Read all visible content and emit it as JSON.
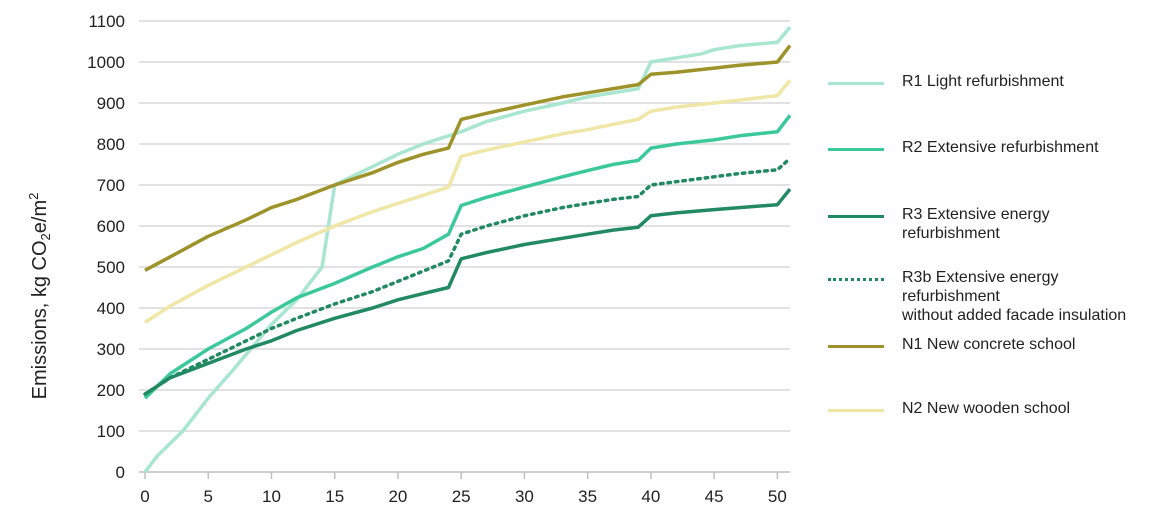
{
  "chart_data": {
    "type": "line",
    "title": "",
    "xlabel": "",
    "ylabel": "Emissions, kg CO2e/m2",
    "ylabel_parts": {
      "prefix": "Emissions, kg CO",
      "sub": "2",
      "mid": "e/m",
      "sup": "2"
    },
    "xlim": [
      0,
      51
    ],
    "ylim": [
      0,
      1100
    ],
    "xticks": [
      0,
      5,
      10,
      15,
      20,
      25,
      30,
      35,
      40,
      45,
      50
    ],
    "yticks": [
      0,
      100,
      200,
      300,
      400,
      500,
      600,
      700,
      800,
      900,
      1000,
      1100
    ],
    "grid": "horizontal",
    "legend_position": "right",
    "series": [
      {
        "name": "R1 Light refurbishment",
        "legend_lines": [
          "R1 Light refurbishment"
        ],
        "color": "#a8e6cf",
        "dash": "solid",
        "points": [
          [
            0,
            0
          ],
          [
            1,
            40
          ],
          [
            3,
            100
          ],
          [
            5,
            180
          ],
          [
            7,
            250
          ],
          [
            10,
            360
          ],
          [
            12,
            420
          ],
          [
            14,
            500
          ],
          [
            15,
            700
          ],
          [
            17,
            730
          ],
          [
            20,
            775
          ],
          [
            22,
            800
          ],
          [
            24,
            820
          ],
          [
            25,
            830
          ],
          [
            27,
            855
          ],
          [
            30,
            880
          ],
          [
            33,
            900
          ],
          [
            35,
            915
          ],
          [
            37,
            925
          ],
          [
            39,
            935
          ],
          [
            40,
            1000
          ],
          [
            42,
            1010
          ],
          [
            44,
            1020
          ],
          [
            45,
            1030
          ],
          [
            47,
            1040
          ],
          [
            50,
            1048
          ],
          [
            51,
            1085
          ]
        ]
      },
      {
        "name": "R2 Extensive refurbishment",
        "legend_lines": [
          "R2 Extensive refurbishment"
        ],
        "color": "#3cc99a",
        "dash": "solid",
        "points": [
          [
            0,
            180
          ],
          [
            2,
            240
          ],
          [
            5,
            300
          ],
          [
            8,
            350
          ],
          [
            10,
            390
          ],
          [
            12,
            425
          ],
          [
            15,
            460
          ],
          [
            18,
            500
          ],
          [
            20,
            525
          ],
          [
            22,
            545
          ],
          [
            24,
            580
          ],
          [
            25,
            650
          ],
          [
            27,
            670
          ],
          [
            30,
            695
          ],
          [
            33,
            720
          ],
          [
            35,
            735
          ],
          [
            37,
            750
          ],
          [
            39,
            760
          ],
          [
            40,
            790
          ],
          [
            42,
            800
          ],
          [
            45,
            810
          ],
          [
            47,
            820
          ],
          [
            50,
            830
          ],
          [
            51,
            870
          ]
        ]
      },
      {
        "name": "R3 Extensive energy refurbishment",
        "legend_lines": [
          "R3 Extensive energy",
          "refurbishment"
        ],
        "color": "#228a62",
        "dash": "solid",
        "points": [
          [
            0,
            190
          ],
          [
            2,
            230
          ],
          [
            5,
            265
          ],
          [
            8,
            300
          ],
          [
            10,
            320
          ],
          [
            12,
            345
          ],
          [
            15,
            375
          ],
          [
            18,
            400
          ],
          [
            20,
            420
          ],
          [
            22,
            435
          ],
          [
            24,
            450
          ],
          [
            25,
            520
          ],
          [
            27,
            535
          ],
          [
            30,
            555
          ],
          [
            33,
            570
          ],
          [
            35,
            580
          ],
          [
            37,
            590
          ],
          [
            39,
            597
          ],
          [
            40,
            625
          ],
          [
            42,
            632
          ],
          [
            45,
            640
          ],
          [
            47,
            645
          ],
          [
            50,
            652
          ],
          [
            51,
            690
          ]
        ]
      },
      {
        "name": "R3b Extensive energy refurbishment without added facade insulation",
        "legend_lines": [
          "R3b Extensive energy",
          "refurbishment",
          "without added facade insulation"
        ],
        "color": "#228a62",
        "dash": "dotted",
        "points": [
          [
            0,
            190
          ],
          [
            2,
            230
          ],
          [
            5,
            275
          ],
          [
            8,
            320
          ],
          [
            10,
            350
          ],
          [
            12,
            375
          ],
          [
            15,
            410
          ],
          [
            18,
            440
          ],
          [
            20,
            465
          ],
          [
            22,
            490
          ],
          [
            24,
            515
          ],
          [
            25,
            580
          ],
          [
            27,
            600
          ],
          [
            30,
            625
          ],
          [
            33,
            645
          ],
          [
            35,
            655
          ],
          [
            37,
            665
          ],
          [
            39,
            672
          ],
          [
            40,
            700
          ],
          [
            42,
            708
          ],
          [
            45,
            720
          ],
          [
            47,
            728
          ],
          [
            50,
            737
          ],
          [
            51,
            765
          ]
        ]
      },
      {
        "name": "N1 New concrete school",
        "legend_lines": [
          "N1 New concrete school"
        ],
        "color": "#9e932a",
        "dash": "solid",
        "points": [
          [
            0,
            492
          ],
          [
            2,
            525
          ],
          [
            5,
            575
          ],
          [
            8,
            615
          ],
          [
            10,
            645
          ],
          [
            12,
            665
          ],
          [
            15,
            700
          ],
          [
            18,
            730
          ],
          [
            20,
            755
          ],
          [
            22,
            775
          ],
          [
            24,
            790
          ],
          [
            25,
            860
          ],
          [
            27,
            875
          ],
          [
            30,
            895
          ],
          [
            33,
            915
          ],
          [
            35,
            925
          ],
          [
            37,
            935
          ],
          [
            39,
            945
          ],
          [
            40,
            970
          ],
          [
            42,
            975
          ],
          [
            45,
            985
          ],
          [
            47,
            992
          ],
          [
            50,
            1000
          ],
          [
            51,
            1040
          ]
        ]
      },
      {
        "name": "N2 New wooden school",
        "legend_lines": [
          "N2 New wooden school"
        ],
        "color": "#f0e6a6",
        "dash": "solid",
        "points": [
          [
            0,
            365
          ],
          [
            2,
            405
          ],
          [
            5,
            455
          ],
          [
            8,
            500
          ],
          [
            10,
            530
          ],
          [
            12,
            560
          ],
          [
            15,
            600
          ],
          [
            18,
            635
          ],
          [
            20,
            655
          ],
          [
            22,
            675
          ],
          [
            24,
            695
          ],
          [
            25,
            770
          ],
          [
            27,
            785
          ],
          [
            30,
            805
          ],
          [
            33,
            825
          ],
          [
            35,
            835
          ],
          [
            37,
            848
          ],
          [
            39,
            860
          ],
          [
            40,
            880
          ],
          [
            42,
            890
          ],
          [
            45,
            900
          ],
          [
            47,
            907
          ],
          [
            50,
            918
          ],
          [
            51,
            955
          ]
        ]
      }
    ]
  }
}
